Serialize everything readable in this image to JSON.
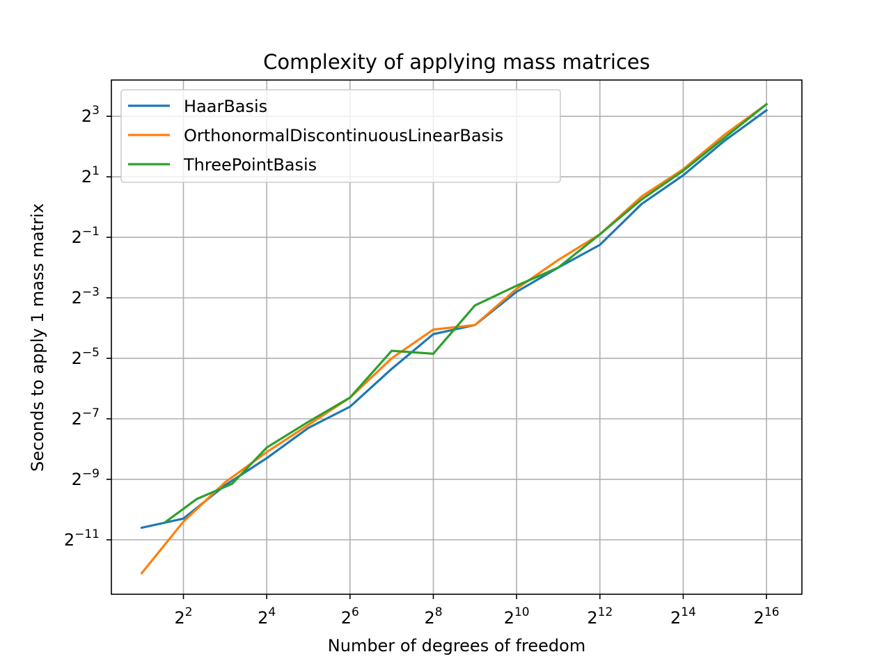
{
  "chart_data": {
    "type": "line",
    "title": "Complexity of applying mass matrices",
    "xlabel": "Number of degrees of freedom",
    "ylabel": "Seconds to apply 1 mass matrix",
    "xscale": "log2",
    "yscale": "log2",
    "xlim_log2": [
      0.27,
      16.85
    ],
    "ylim_log2": [
      -12.8,
      4.2
    ],
    "xticks": [
      {
        "base": "2",
        "exp": "2",
        "log2": 2
      },
      {
        "base": "2",
        "exp": "4",
        "log2": 4
      },
      {
        "base": "2",
        "exp": "6",
        "log2": 6
      },
      {
        "base": "2",
        "exp": "8",
        "log2": 8
      },
      {
        "base": "2",
        "exp": "10",
        "log2": 10
      },
      {
        "base": "2",
        "exp": "12",
        "log2": 12
      },
      {
        "base": "2",
        "exp": "14",
        "log2": 14
      },
      {
        "base": "2",
        "exp": "16",
        "log2": 16
      }
    ],
    "yticks": [
      {
        "base": "2",
        "exp": "3",
        "log2": 3
      },
      {
        "base": "2",
        "exp": "1",
        "log2": 1
      },
      {
        "base": "2",
        "exp": "−1",
        "log2": -1
      },
      {
        "base": "2",
        "exp": "−3",
        "log2": -3
      },
      {
        "base": "2",
        "exp": "−5",
        "log2": -5
      },
      {
        "base": "2",
        "exp": "−7",
        "log2": -7
      },
      {
        "base": "2",
        "exp": "−9",
        "log2": -9
      },
      {
        "base": "2",
        "exp": "−11",
        "log2": -11
      }
    ],
    "grid": true,
    "legend_position": "upper-left",
    "series": [
      {
        "name": "HaarBasis",
        "color": "#1f77b4",
        "log2_x": [
          1,
          2,
          3,
          4,
          5,
          6,
          7,
          8,
          9,
          10,
          11,
          12,
          13,
          14,
          15,
          16
        ],
        "log2_y": [
          -10.6,
          -10.3,
          -9.2,
          -8.3,
          -7.3,
          -6.6,
          -5.35,
          -4.2,
          -3.9,
          -2.8,
          -2.0,
          -1.25,
          0.1,
          1.05,
          2.2,
          3.2
        ]
      },
      {
        "name": "OrthonormalDiscontinuousLinearBasis",
        "color": "#ff7f0e",
        "log2_x": [
          1,
          2,
          3,
          4,
          5,
          6,
          7,
          8,
          9,
          10,
          11,
          12,
          13,
          14,
          15,
          16
        ],
        "log2_y": [
          -12.1,
          -10.4,
          -9.1,
          -8.1,
          -7.2,
          -6.3,
          -5.0,
          -4.05,
          -3.9,
          -2.7,
          -1.75,
          -0.9,
          0.35,
          1.25,
          2.4,
          3.4
        ]
      },
      {
        "name": "ThreePointBasis",
        "color": "#2ca02c",
        "log2_x": [
          1.58,
          2.32,
          3.17,
          4,
          5,
          6,
          7,
          8,
          9,
          10,
          11,
          12,
          13,
          14,
          15,
          16
        ],
        "log2_y": [
          -10.4,
          -9.65,
          -9.15,
          -7.95,
          -7.1,
          -6.3,
          -4.75,
          -4.85,
          -3.25,
          -2.6,
          -2.0,
          -0.9,
          0.25,
          1.2,
          2.3,
          3.4
        ]
      }
    ]
  }
}
